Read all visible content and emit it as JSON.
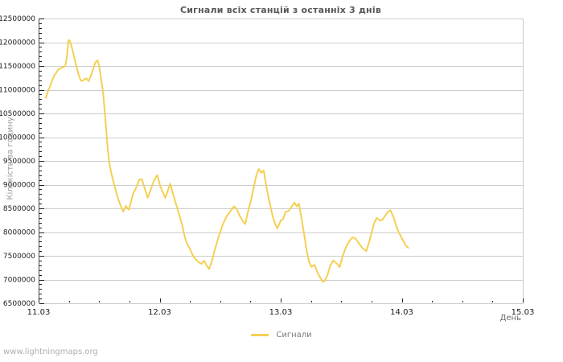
{
  "page": {
    "watermark": "www.lightningmaps.org"
  },
  "colors": {
    "line": "#f5cf53",
    "grid": "#cccccc",
    "frame": "#cccccc",
    "axis": "#444444",
    "tick": "#222222",
    "tick_label": "#1c1c1c",
    "title": "#58585a",
    "muted": "#9a9a9a"
  },
  "chart_data": {
    "type": "line",
    "title": "Сигнали всіх станцій з останніх 3 днів",
    "xlabel": "День",
    "ylabel": "Кількість за годину",
    "grid": "horizontal",
    "legend_position": "bottom-center",
    "x_range_days": [
      0,
      4
    ],
    "x_tick_days": [
      0,
      1,
      2,
      3,
      4
    ],
    "x_tick_labels": [
      "11.03",
      "12.03",
      "13.03",
      "14.03",
      "15.03"
    ],
    "x_minor_tick_step_days": 0.25,
    "ylim": [
      6500000,
      12500000
    ],
    "y_tick_step": 500000,
    "y_minor_tick_step": 100000,
    "y_tick_values": [
      6500000,
      7000000,
      7500000,
      8000000,
      8500000,
      9000000,
      9500000,
      10000000,
      10500000,
      11000000,
      11500000,
      12000000,
      12500000
    ],
    "y_tick_labels": [
      "6500000",
      "7000000",
      "7500000",
      "8000000",
      "8500000",
      "9000000",
      "9500000",
      "10000000",
      "10500000",
      "11000000",
      "11500000",
      "12000000",
      "12500000"
    ],
    "legend": {
      "entries": [
        {
          "label": "Сигнали",
          "color": "#f5cf53"
        }
      ]
    },
    "series": [
      {
        "name": "Сигнали",
        "color": "#f5cf53",
        "points": [
          [
            0.06,
            10830000
          ],
          [
            0.08,
            10980000
          ],
          [
            0.093,
            11060000
          ],
          [
            0.113,
            11200000
          ],
          [
            0.127,
            11290000
          ],
          [
            0.147,
            11360000
          ],
          [
            0.16,
            11420000
          ],
          [
            0.18,
            11450000
          ],
          [
            0.2,
            11470000
          ],
          [
            0.22,
            11500000
          ],
          [
            0.233,
            11680000
          ],
          [
            0.247,
            12050000
          ],
          [
            0.26,
            12020000
          ],
          [
            0.273,
            11900000
          ],
          [
            0.293,
            11700000
          ],
          [
            0.313,
            11480000
          ],
          [
            0.333,
            11300000
          ],
          [
            0.347,
            11200000
          ],
          [
            0.36,
            11180000
          ],
          [
            0.38,
            11220000
          ],
          [
            0.393,
            11240000
          ],
          [
            0.413,
            11180000
          ],
          [
            0.433,
            11300000
          ],
          [
            0.453,
            11450000
          ],
          [
            0.467,
            11570000
          ],
          [
            0.487,
            11620000
          ],
          [
            0.5,
            11500000
          ],
          [
            0.513,
            11280000
          ],
          [
            0.533,
            10940000
          ],
          [
            0.547,
            10520000
          ],
          [
            0.56,
            10100000
          ],
          [
            0.573,
            9700000
          ],
          [
            0.587,
            9420000
          ],
          [
            0.6,
            9250000
          ],
          [
            0.613,
            9110000
          ],
          [
            0.633,
            8910000
          ],
          [
            0.66,
            8680000
          ],
          [
            0.687,
            8500000
          ],
          [
            0.7,
            8430000
          ],
          [
            0.72,
            8550000
          ],
          [
            0.747,
            8470000
          ],
          [
            0.78,
            8810000
          ],
          [
            0.8,
            8900000
          ],
          [
            0.833,
            9110000
          ],
          [
            0.853,
            9110000
          ],
          [
            0.873,
            8950000
          ],
          [
            0.9,
            8720000
          ],
          [
            0.927,
            8900000
          ],
          [
            0.953,
            9090000
          ],
          [
            0.98,
            9200000
          ],
          [
            1.007,
            8950000
          ],
          [
            1.047,
            8720000
          ],
          [
            1.087,
            9020000
          ],
          [
            1.113,
            8780000
          ],
          [
            1.14,
            8550000
          ],
          [
            1.16,
            8380000
          ],
          [
            1.187,
            8140000
          ],
          [
            1.207,
            7900000
          ],
          [
            1.227,
            7750000
          ],
          [
            1.253,
            7630000
          ],
          [
            1.28,
            7480000
          ],
          [
            1.307,
            7400000
          ],
          [
            1.327,
            7360000
          ],
          [
            1.347,
            7330000
          ],
          [
            1.367,
            7400000
          ],
          [
            1.387,
            7300000
          ],
          [
            1.407,
            7220000
          ],
          [
            1.427,
            7350000
          ],
          [
            1.453,
            7600000
          ],
          [
            1.487,
            7900000
          ],
          [
            1.52,
            8150000
          ],
          [
            1.553,
            8330000
          ],
          [
            1.587,
            8450000
          ],
          [
            1.613,
            8540000
          ],
          [
            1.633,
            8500000
          ],
          [
            1.66,
            8350000
          ],
          [
            1.687,
            8230000
          ],
          [
            1.707,
            8170000
          ],
          [
            1.727,
            8400000
          ],
          [
            1.753,
            8650000
          ],
          [
            1.78,
            8980000
          ],
          [
            1.8,
            9200000
          ],
          [
            1.82,
            9330000
          ],
          [
            1.84,
            9250000
          ],
          [
            1.86,
            9300000
          ],
          [
            1.88,
            8980000
          ],
          [
            1.907,
            8640000
          ],
          [
            1.933,
            8340000
          ],
          [
            1.953,
            8180000
          ],
          [
            1.973,
            8080000
          ],
          [
            2.0,
            8240000
          ],
          [
            2.02,
            8280000
          ],
          [
            2.04,
            8420000
          ],
          [
            2.067,
            8450000
          ],
          [
            2.113,
            8620000
          ],
          [
            2.133,
            8540000
          ],
          [
            2.15,
            8600000
          ],
          [
            2.173,
            8280000
          ],
          [
            2.193,
            7970000
          ],
          [
            2.213,
            7630000
          ],
          [
            2.233,
            7380000
          ],
          [
            2.253,
            7270000
          ],
          [
            2.28,
            7310000
          ],
          [
            2.307,
            7130000
          ],
          [
            2.327,
            7040000
          ],
          [
            2.347,
            6950000
          ],
          [
            2.367,
            6980000
          ],
          [
            2.387,
            7100000
          ],
          [
            2.407,
            7280000
          ],
          [
            2.433,
            7400000
          ],
          [
            2.467,
            7330000
          ],
          [
            2.487,
            7260000
          ],
          [
            2.513,
            7500000
          ],
          [
            2.54,
            7690000
          ],
          [
            2.567,
            7810000
          ],
          [
            2.593,
            7890000
          ],
          [
            2.62,
            7860000
          ],
          [
            2.647,
            7760000
          ],
          [
            2.673,
            7670000
          ],
          [
            2.707,
            7600000
          ],
          [
            2.733,
            7810000
          ],
          [
            2.753,
            8010000
          ],
          [
            2.773,
            8190000
          ],
          [
            2.793,
            8300000
          ],
          [
            2.82,
            8240000
          ],
          [
            2.84,
            8260000
          ],
          [
            2.867,
            8360000
          ],
          [
            2.887,
            8430000
          ],
          [
            2.907,
            8460000
          ],
          [
            2.933,
            8310000
          ],
          [
            2.953,
            8140000
          ],
          [
            2.973,
            8010000
          ],
          [
            2.993,
            7910000
          ],
          [
            3.013,
            7810000
          ],
          [
            3.033,
            7720000
          ],
          [
            3.053,
            7670000
          ]
        ]
      }
    ]
  }
}
